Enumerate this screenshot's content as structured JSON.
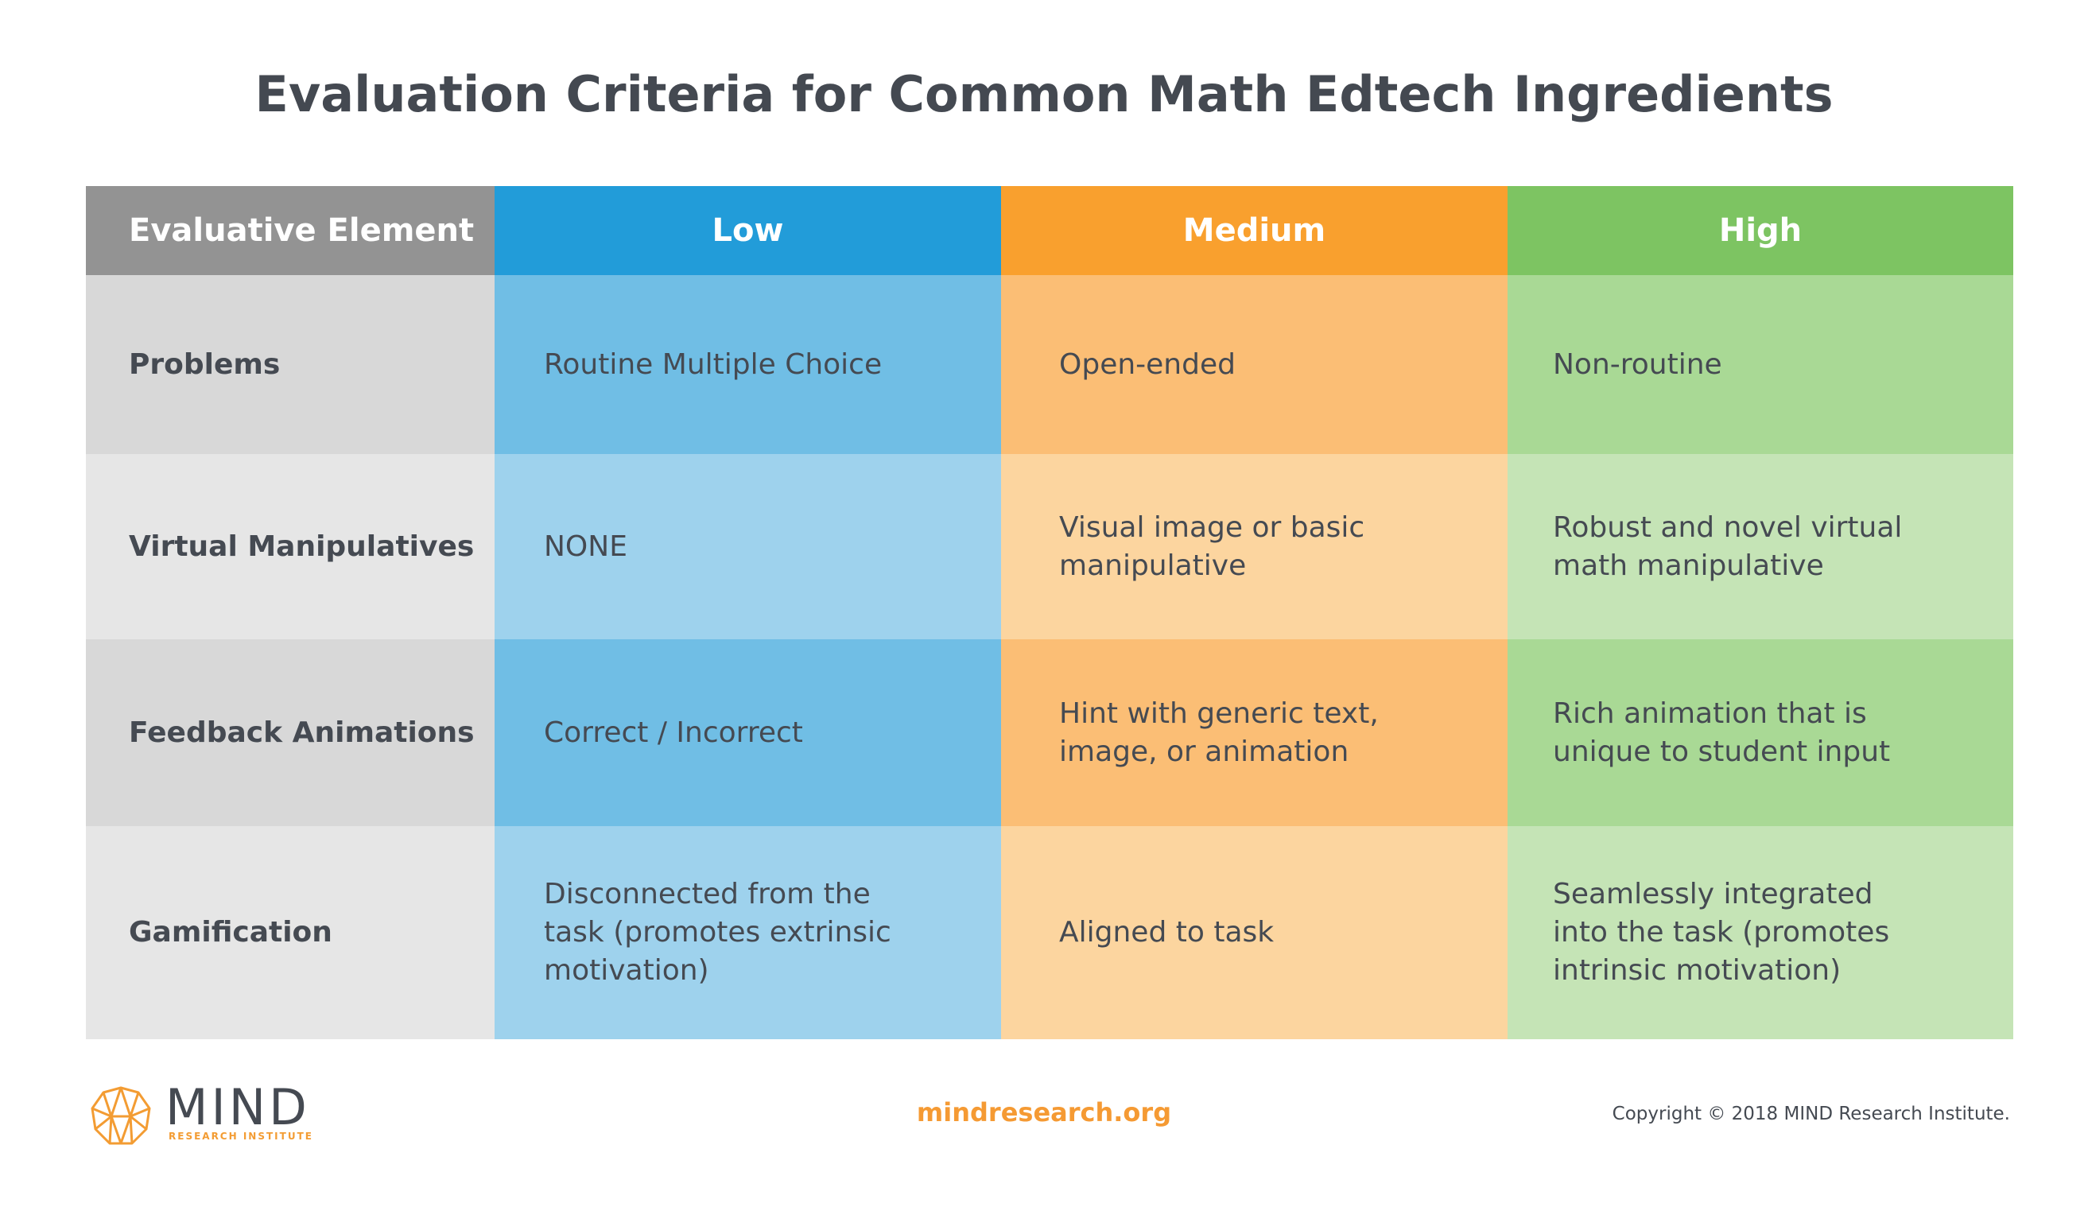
{
  "title": "Evaluation Criteria for Common Math Edtech Ingredients",
  "colors": {
    "header_gray": "#939393",
    "header_blue": "#229cd9",
    "header_orange": "#f9a02e",
    "header_green": "#7dc462",
    "label_dark": "#d8d8d8",
    "label_light": "#e6e6e6",
    "low_dark": "#70bee5",
    "low_light": "#9ed2ed",
    "med_dark": "#fbbe75",
    "med_light": "#fcd59f",
    "high_dark": "#a9d995",
    "high_light": "#c5e4b6"
  },
  "table": {
    "headers": [
      "Evaluative Element",
      "Low",
      "Medium",
      "High"
    ],
    "rows": [
      {
        "label": "Problems",
        "low": "Routine Multiple Choice",
        "medium": "Open-ended",
        "high": "Non-routine"
      },
      {
        "label": "Virtual Manipulatives",
        "low": "NONE",
        "medium": "Visual image or basic manipulative",
        "high": "Robust and novel virtual math manipulative"
      },
      {
        "label": "Feedback Animations",
        "low": "Correct / Incorrect",
        "medium": "Hint with generic text, image, or animation",
        "high": "Rich animation that is unique to student input"
      },
      {
        "label": "Gamification",
        "low": "Disconnected from the task (promotes extrinsic motivation)",
        "medium": "Aligned to task",
        "high": "Seamlessly integrated into the task (promotes intrinsic motivation)"
      }
    ]
  },
  "footer": {
    "logo_name": "MIND",
    "logo_subtitle": "RESEARCH INSTITUTE",
    "logo_icon": "brain-icon",
    "website": "mindresearch.org",
    "copyright": "Copyright © 2018 MIND Research Institute."
  }
}
